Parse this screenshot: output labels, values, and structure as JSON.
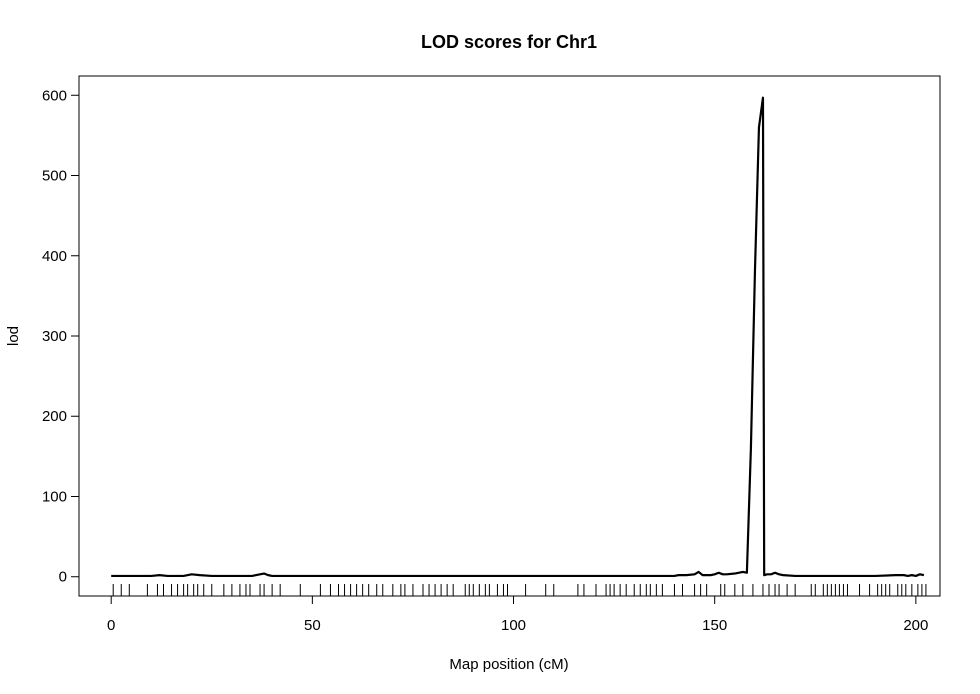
{
  "chart_data": {
    "type": "line",
    "title": "LOD scores for Chr1",
    "xlabel": "Map position (cM)",
    "ylabel": "lod",
    "xlim": [
      -8,
      206
    ],
    "ylim": [
      -24,
      624
    ],
    "x_ticks": [
      0,
      50,
      100,
      150,
      200
    ],
    "y_ticks": [
      0,
      100,
      200,
      300,
      400,
      500,
      600
    ],
    "grid": false,
    "legend": "none",
    "line_color": "#000000",
    "series": [
      {
        "x": [
          0,
          5,
          10,
          12,
          14,
          16,
          18,
          20,
          22,
          25,
          30,
          35,
          37,
          38,
          39,
          40,
          50,
          60,
          70,
          80,
          90,
          100,
          110,
          120,
          130,
          140,
          141,
          143,
          145,
          146,
          147,
          148,
          149,
          150,
          151,
          152,
          153,
          155,
          157,
          158,
          159,
          160,
          161,
          162,
          162.3,
          163,
          164,
          165,
          166,
          167,
          170,
          180,
          190,
          195,
          197,
          198,
          199,
          200,
          201,
          202
        ],
        "y": [
          1,
          1,
          1,
          2,
          1,
          1,
          1,
          3,
          2,
          1,
          1,
          1,
          3,
          4,
          2,
          1,
          1,
          1,
          1,
          1,
          1,
          1,
          1,
          1,
          1,
          1,
          2,
          2,
          3,
          6,
          2,
          2,
          2,
          3,
          5,
          3,
          3,
          4,
          6,
          5,
          160,
          380,
          560,
          597,
          2,
          3,
          3,
          5,
          3,
          2,
          1,
          1,
          1,
          2,
          2,
          1,
          2,
          1,
          3,
          2
        ]
      }
    ],
    "markers": [
      0.5,
      2.5,
      4.5,
      9,
      11.5,
      13,
      15,
      16.5,
      18,
      19,
      20.5,
      21.5,
      23,
      25,
      28,
      30,
      32,
      33.5,
      34.5,
      37,
      38,
      40,
      42,
      47,
      52,
      54.5,
      56.5,
      58,
      59.5,
      61,
      62.5,
      64,
      66,
      67.5,
      70,
      72,
      73,
      75,
      77.5,
      79,
      80.5,
      82,
      83.5,
      85,
      88,
      89,
      90,
      91.5,
      93,
      94,
      96,
      97.5,
      98.5,
      103,
      108,
      110,
      116,
      117.5,
      120.5,
      123,
      124,
      125,
      126.5,
      128,
      130,
      131.5,
      133,
      134,
      135.5,
      137,
      140,
      142,
      145,
      146.5,
      148,
      151.5,
      152.5,
      155,
      157,
      159.5,
      162,
      163.5,
      165,
      166,
      168,
      170,
      174,
      175,
      177,
      178,
      179,
      180,
      181,
      182,
      183,
      186,
      188.5,
      190.5,
      191.5,
      192.5,
      193.5,
      195.5,
      196.5,
      197.5,
      199,
      200.5,
      201.5,
      202.5
    ]
  }
}
